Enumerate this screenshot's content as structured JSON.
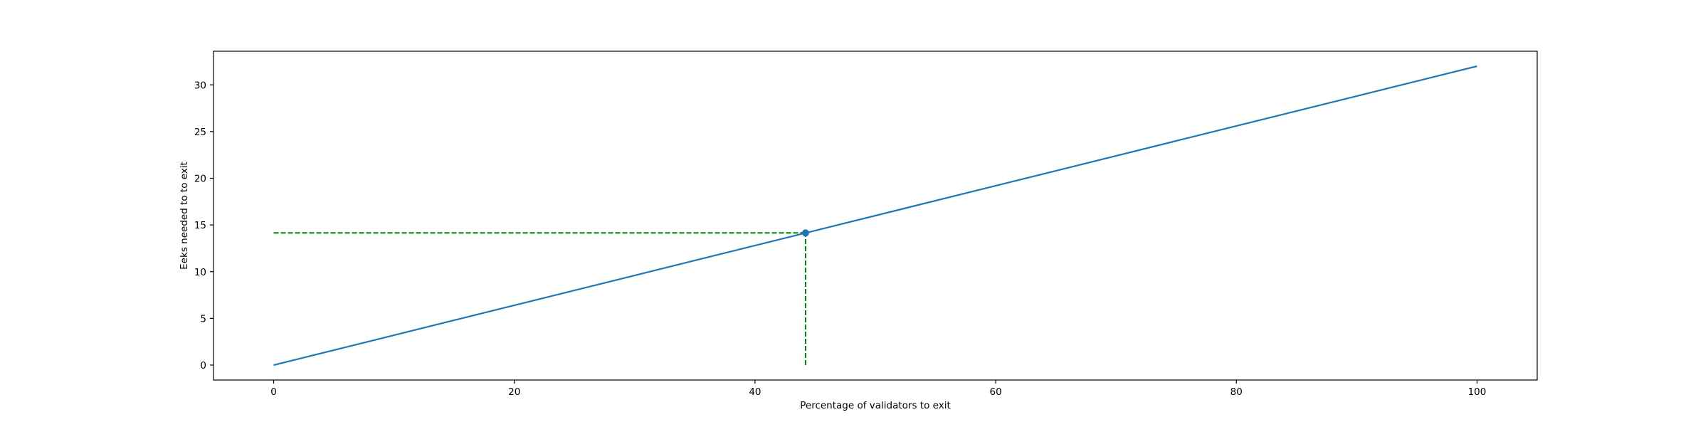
{
  "chart_data": {
    "type": "line",
    "title": "",
    "xlabel": "Percentage of validators to exit",
    "ylabel": "Eeks needed to to exit",
    "xlim": [
      -5,
      105
    ],
    "ylim": [
      -1.6,
      33.6
    ],
    "xticks": [
      0,
      20,
      40,
      60,
      80,
      100
    ],
    "xtick_labels": [
      "0",
      "20",
      "40",
      "60",
      "80",
      "100"
    ],
    "yticks": [
      0,
      5,
      10,
      15,
      20,
      25,
      30
    ],
    "ytick_labels": [
      "0",
      "5",
      "10",
      "15",
      "20",
      "25",
      "30"
    ],
    "grid": false,
    "series": [
      {
        "x": [
          0,
          100
        ],
        "y": [
          0,
          32
        ],
        "color": "#1f77b4"
      }
    ],
    "highlight_point": {
      "x": 44.2,
      "y": 14.15,
      "color": "#1f77b4"
    },
    "guide_lines": [
      {
        "orientation": "horizontal",
        "y": 14.15,
        "x_from": 0,
        "x_to": 44.2,
        "color": "#008000",
        "style": "dashed"
      },
      {
        "orientation": "vertical",
        "x": 44.2,
        "y_from": 0,
        "y_to": 14.15,
        "color": "#008000",
        "style": "dashed"
      }
    ]
  }
}
